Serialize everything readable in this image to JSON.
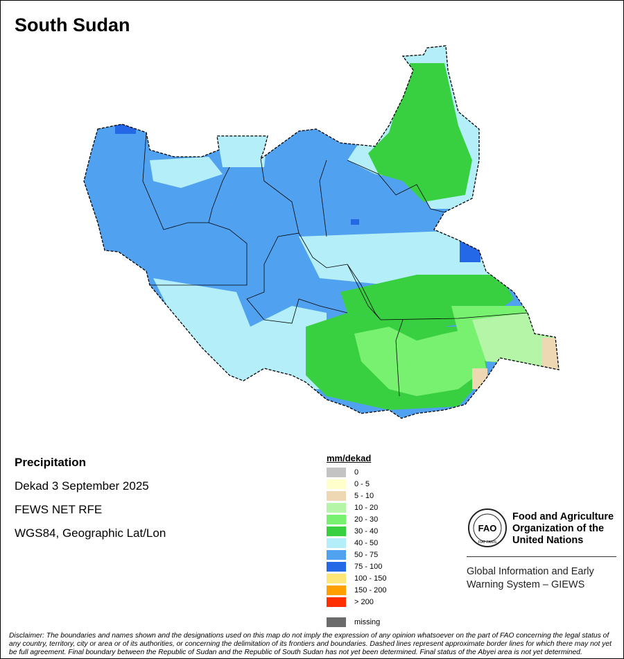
{
  "title": "South Sudan",
  "info": {
    "variable": "Precipitation",
    "period": "Dekad 3 September 2025",
    "source": "FEWS NET RFE",
    "projection": "WGS84, Geographic Lat/Lon"
  },
  "legend": {
    "unit": "mm/dekad",
    "classes": [
      {
        "label": "0",
        "color": "#c3c3c3"
      },
      {
        "label": "0 - 5",
        "color": "#ffffcc"
      },
      {
        "label": "5 - 10",
        "color": "#eed8b4"
      },
      {
        "label": "10 - 20",
        "color": "#b4f5a8"
      },
      {
        "label": "20 - 30",
        "color": "#78f070"
      },
      {
        "label": "30 - 40",
        "color": "#38d040"
      },
      {
        "label": "40 - 50",
        "color": "#b4eef8"
      },
      {
        "label": "50 - 75",
        "color": "#50a2f0"
      },
      {
        "label": "75 - 100",
        "color": "#2468e8"
      },
      {
        "label": "100 - 150",
        "color": "#ffe678"
      },
      {
        "label": "150 - 200",
        "color": "#ffa000"
      },
      {
        "label": "> 200",
        "color": "#ff3000"
      }
    ],
    "missing": {
      "label": "missing",
      "color": "#6b6b6b"
    }
  },
  "logo": {
    "org": "Food and Agriculture Organization of the United Nations",
    "emblem": "FAO FIAT PANIS"
  },
  "giews": "Global Information and Early Warning System – GIEWS",
  "disclaimer": "Disclaimer: The boundaries and names shown and the designations used on this map do not imply the expression of any opinion whatsoever on the part of FAO concerning the legal status of any country, territory, city or area or of its authorities, or concerning the delimitation of its frontiers and boundaries. Dashed lines represent approximate border lines for which there may not yet be full agreement.  Final boundary between the Republic of Sudan and the Republic of South Sudan has not yet been determined. Final status of the Abyei area is not yet determined."
}
